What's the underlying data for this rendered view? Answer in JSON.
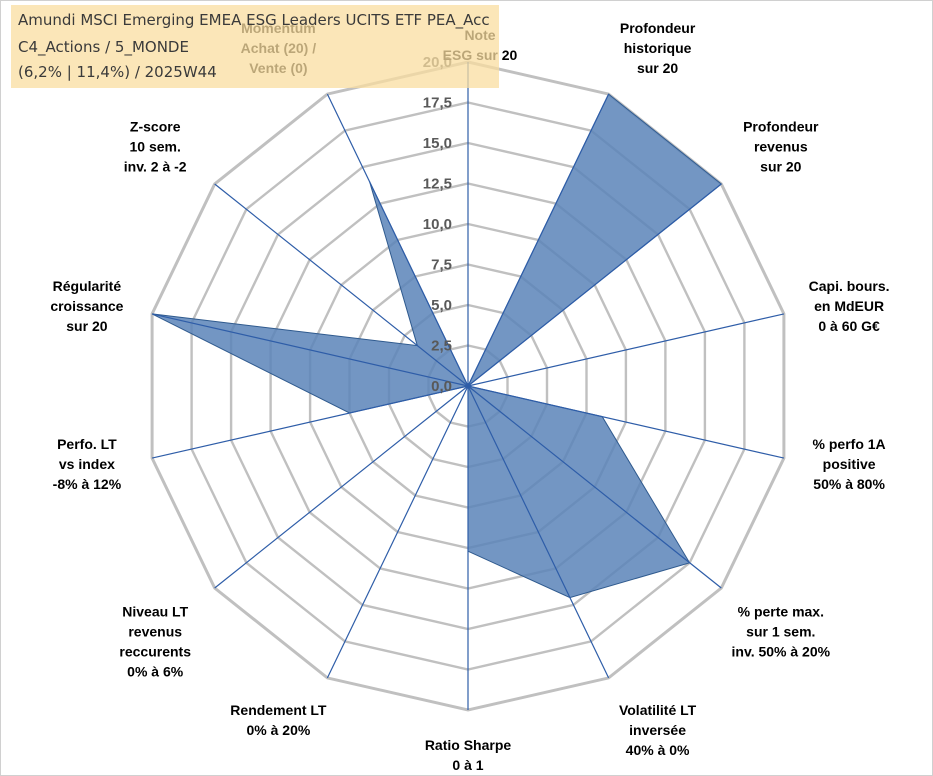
{
  "info_box": {
    "line1": "Amundi MSCI Emerging EMEA ESG Leaders UCITS ETF PEA_Acc",
    "line2": "C4_Actions / 5_MONDE",
    "line3": "(6,2% | 11,4%) / 2025W44"
  },
  "chart_data": {
    "type": "radar",
    "rlim": [
      0,
      20
    ],
    "ticks": [
      "0,0",
      "2,5",
      "5,0",
      "7,5",
      "10,0",
      "12,5",
      "15,0",
      "17,5",
      "20,0"
    ],
    "categories": [
      [
        "Note",
        "ESG sur 20"
      ],
      [
        "Profondeur",
        "historique",
        "sur 20"
      ],
      [
        "Profondeur",
        "revenus",
        "sur 20"
      ],
      [
        "Capi. bours.",
        "en MdEUR",
        "0 à 60 G€"
      ],
      [
        "% perfo 1A",
        "positive",
        "50% à 80%"
      ],
      [
        "% perte max.",
        "sur 1 sem.",
        "inv. 50% à 20%"
      ],
      [
        "Volatilité LT",
        "inversée",
        "40% à 0%"
      ],
      [
        "Ratio Sharpe",
        "0 à 1"
      ],
      [
        "Rendement LT",
        "0% à 20%"
      ],
      [
        "Niveau LT",
        "revenus",
        "reccurents",
        "0% à 6%"
      ],
      [
        "Perfo. LT",
        "vs index",
        "-8% à 12%"
      ],
      [
        "Régularité",
        "croissance",
        "sur 20"
      ],
      [
        "Z-score",
        "10 sem.",
        "inv. 2 à -2"
      ],
      [
        "Momentum",
        "Achat (20) /",
        "Vente (0)"
      ]
    ],
    "series": [
      {
        "values": [
          0,
          20,
          20,
          0,
          8.5,
          17.5,
          14.5,
          10.2,
          0,
          0,
          7.5,
          20,
          4,
          14
        ]
      }
    ],
    "colors": {
      "fill": "#5b84b9",
      "stroke": "#2f5a8e",
      "grid": "#c0c0c0",
      "axis": "#2e5da8"
    },
    "grid": true,
    "legend": "none"
  }
}
